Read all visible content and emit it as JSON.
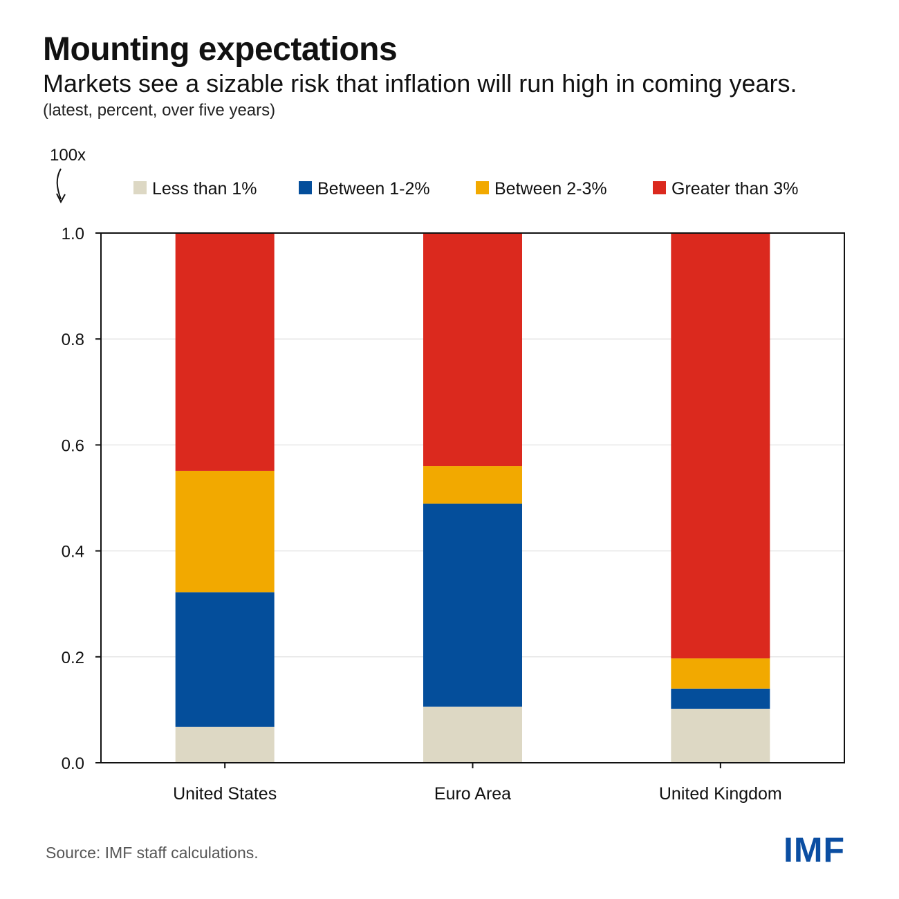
{
  "title": "Mounting expectations",
  "subtitle": "Markets see a sizable risk that inflation will run high in coming years.",
  "note": "(latest, percent, over five years)",
  "source": "Source: IMF staff calculations.",
  "logo_text": "IMF",
  "chart_data": {
    "type": "bar",
    "stacked": true,
    "y_multiplier_label": "100x",
    "categories": [
      "United States",
      "Euro Area",
      "United Kingdom"
    ],
    "series": [
      {
        "name": "Less than 1%",
        "color": "#ddd8c4",
        "values": [
          0.068,
          0.106,
          0.102
        ]
      },
      {
        "name": "Between 1-2%",
        "color": "#044e9b",
        "values": [
          0.254,
          0.383,
          0.038
        ]
      },
      {
        "name": "Between 2-3%",
        "color": "#f2a900",
        "values": [
          0.229,
          0.071,
          0.057
        ]
      },
      {
        "name": "Greater than 3%",
        "color": "#db291e",
        "values": [
          0.449,
          0.44,
          0.803
        ]
      }
    ],
    "ylim": [
      0,
      1.0
    ],
    "yticks": [
      "0.0",
      "0.2",
      "0.4",
      "0.6",
      "0.8",
      "1.0"
    ],
    "ytick_values": [
      0,
      0.2,
      0.4,
      0.6,
      0.8,
      1.0
    ],
    "grid": true,
    "legend_position": "top"
  }
}
